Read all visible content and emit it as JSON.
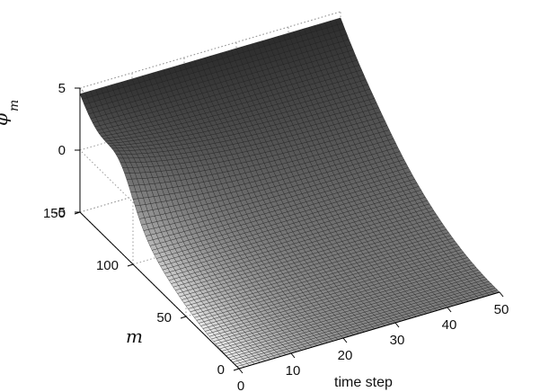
{
  "chart_data": {
    "type": "surface",
    "title": "",
    "xlabel": "time step",
    "ylabel": "m",
    "zlabel_main": "φ̄̇",
    "zlabel_sub": "m",
    "xlim": [
      0,
      50
    ],
    "ylim": [
      0,
      150
    ],
    "zlim": [
      -5,
      5
    ],
    "x_ticks": [
      0,
      10,
      20,
      30,
      40,
      50
    ],
    "y_ticks": [
      0,
      50,
      100,
      150
    ],
    "z_ticks": [
      -5,
      0,
      5
    ],
    "x_tick_labels": [
      "0",
      "10",
      "20",
      "30",
      "40",
      "50"
    ],
    "y_tick_labels": [
      "0",
      "50",
      "100",
      "150"
    ],
    "z_tick_labels": [
      "-5",
      "0",
      "5"
    ],
    "grid": true,
    "surface": {
      "x_range": [
        0,
        50
      ],
      "y_range": [
        0,
        150
      ],
      "edges": [
        {
          "corner": "x=0,y=150",
          "z": 4.5
        },
        {
          "corner": "x=0,y=0",
          "z": -5
        },
        {
          "corner": "x=50,y=0",
          "z": -5
        },
        {
          "corner": "x=50,y=150",
          "z": 4.5
        }
      ],
      "note_visible_shape": "high ridge along m=150, valley near m=0; smooth transition"
    },
    "colormap": "gray"
  }
}
